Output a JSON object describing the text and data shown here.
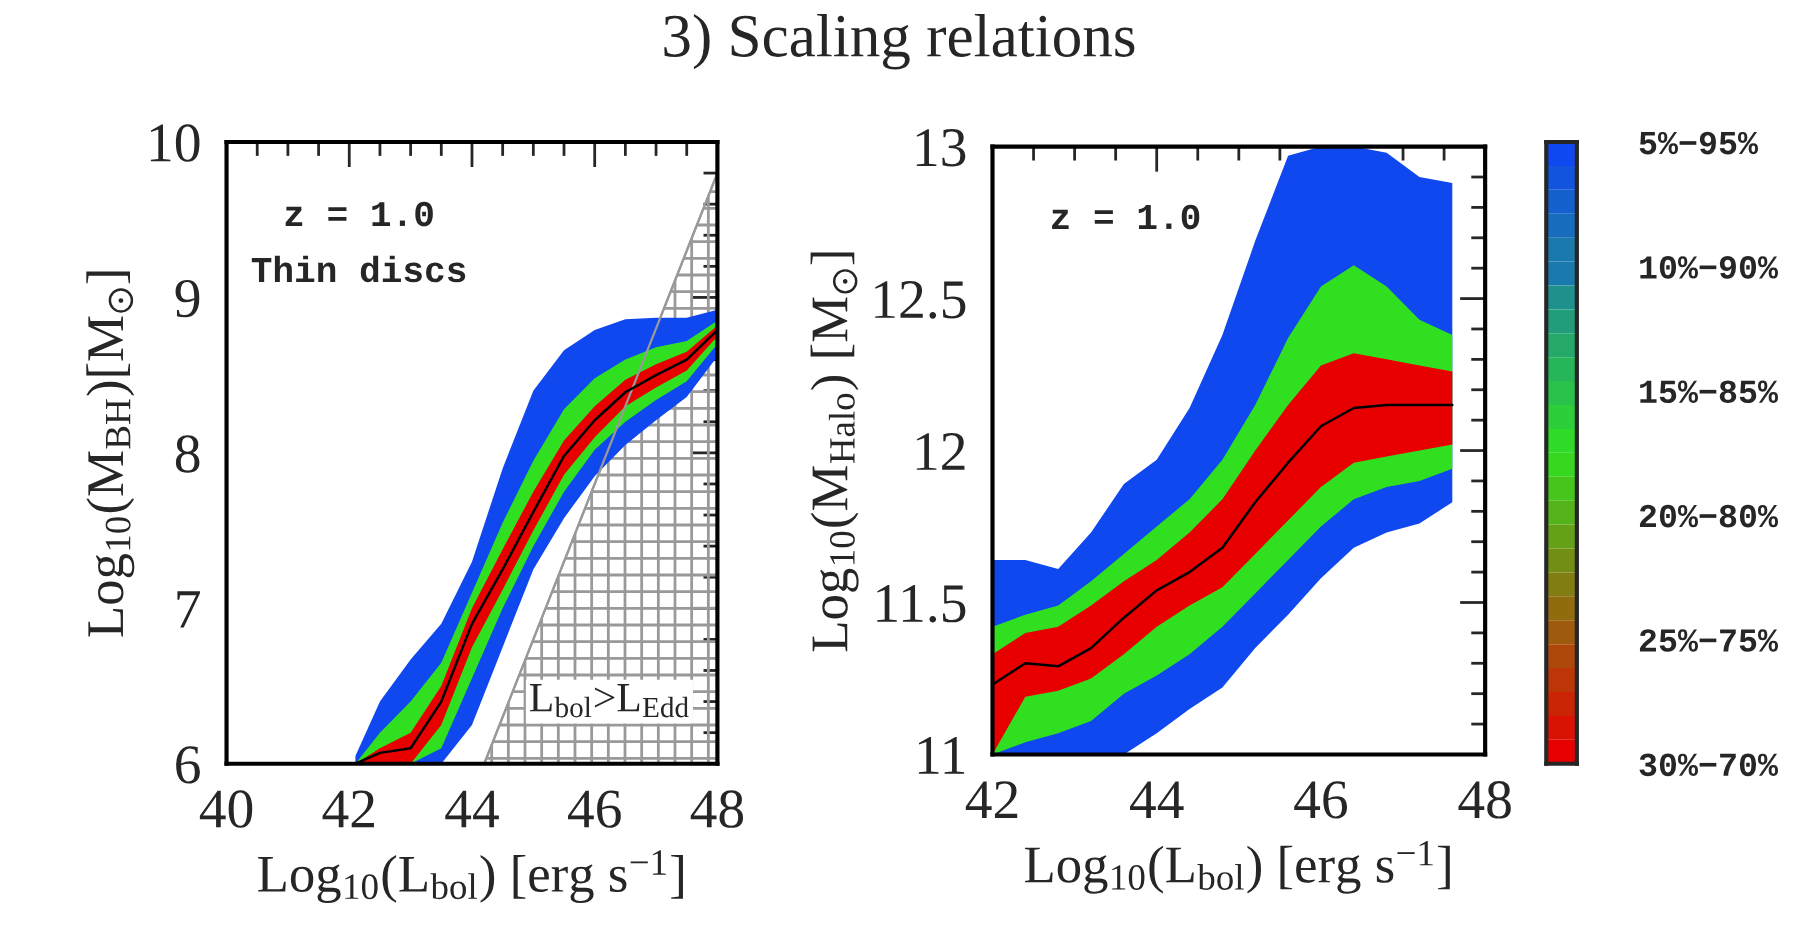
{
  "chart_data": [
    {
      "type": "line",
      "title": "3) Scaling relations",
      "xlabel": "Log$_{10}$(L$_{bol}$) [erg s$^{−1}$]",
      "ylabel": "Log$_{10}$(M$_{BH}$)[M$_{⊙}$]",
      "xlim": [
        40,
        48
      ],
      "ylim": [
        6,
        10
      ],
      "xticks": [
        40,
        42,
        44,
        46,
        48
      ],
      "yticks": [
        6,
        7,
        8,
        9,
        10
      ],
      "annotations": [
        "z = 1.0",
        "Thin discs",
        "L$_{bol}$>L$_{Edd}$"
      ],
      "series": [
        {
          "type": "area",
          "color": "#999999",
          "x": [
            44.2,
            48
          ],
          "values": [
            6,
            9.8
          ]
        },
        {
          "color": "#1048f0",
          "x": [
            42.1,
            42.5,
            43,
            43.5,
            44,
            44.5,
            45,
            45.5,
            46,
            46.5,
            47,
            47.5,
            48
          ],
          "values": [
            null,
            null,
            null,
            null,
            null,
            null,
            null,
            null,
            null,
            null,
            null,
            null,
            null
          ],
          "lower": [
            6,
            6,
            6,
            6,
            6.25,
            6.75,
            7.25,
            7.58,
            7.85,
            8.05,
            8.21,
            8.36,
            8.62
          ],
          "upper": [
            6.05,
            6.4,
            6.67,
            6.9,
            7.3,
            7.9,
            8.4,
            8.66,
            8.79,
            8.86,
            8.87,
            8.87,
            8.92
          ]
        },
        {
          "color": "#30e020",
          "x": [
            42.1,
            42.5,
            43,
            43.5,
            44,
            44.5,
            45,
            45.5,
            46,
            46.5,
            47,
            47.5,
            48
          ],
          "values": [
            null,
            null,
            null,
            null,
            null,
            null,
            null,
            null,
            null,
            null,
            null,
            null,
            null
          ],
          "lower": [
            6,
            6,
            6,
            6.1,
            6.55,
            7.0,
            7.4,
            7.75,
            8.02,
            8.2,
            8.34,
            8.46,
            8.7
          ],
          "upper": [
            6.0,
            6.2,
            6.4,
            6.65,
            7.1,
            7.55,
            7.95,
            8.28,
            8.48,
            8.6,
            8.68,
            8.72,
            8.85
          ]
        },
        {
          "color": "#e80000",
          "x": [
            42.1,
            42.5,
            43,
            43.5,
            44,
            44.5,
            45,
            45.5,
            46,
            46.5,
            47,
            47.5,
            48
          ],
          "values": [
            null,
            null,
            null,
            null,
            null,
            null,
            null,
            null,
            null,
            null,
            null,
            null,
            null
          ],
          "lower": [
            6,
            6,
            6,
            6.25,
            6.75,
            7.12,
            7.5,
            7.86,
            8.1,
            8.3,
            8.42,
            8.53,
            8.75
          ],
          "upper": [
            6,
            6.1,
            6.2,
            6.5,
            7.0,
            7.38,
            7.75,
            8.08,
            8.3,
            8.47,
            8.57,
            8.65,
            8.82
          ]
        },
        {
          "color": "#000000",
          "x": [
            42.1,
            42.5,
            43,
            43.5,
            44,
            44.5,
            45,
            45.5,
            46,
            46.5,
            47,
            47.5,
            48
          ],
          "values": [
            6.0,
            6.07,
            6.1,
            6.4,
            6.9,
            7.25,
            7.62,
            7.98,
            8.21,
            8.39,
            8.5,
            8.6,
            8.79
          ]
        }
      ]
    },
    {
      "type": "line",
      "xlabel": "Log$_{10}$(L$_{bol}$) [erg s$^{−1}$]",
      "ylabel": "Log$_{10}$(M$_{Halo}$) [M$_{⊙}$]",
      "xlim": [
        42,
        48
      ],
      "ylim": [
        11,
        13
      ],
      "xticks": [
        42,
        44,
        46,
        48
      ],
      "yticks": [
        11,
        11.5,
        12,
        12.5,
        13
      ],
      "annotations": [
        "z = 1.0"
      ],
      "clim": [
        30,
        5
      ],
      "cticks": [
        {
          "value": 5,
          "label": "5%−95%"
        },
        {
          "value": 10,
          "label": "10%−90%"
        },
        {
          "value": 15,
          "label": "15%−85%"
        },
        {
          "value": 20,
          "label": "20%−80%"
        },
        {
          "value": 25,
          "label": "25%−75%"
        },
        {
          "value": 30,
          "label": "30%−70%"
        }
      ],
      "series": [
        {
          "color": "#1048f0",
          "x": [
            42,
            42.4,
            42.8,
            43.2,
            43.6,
            44,
            44.4,
            44.8,
            45.2,
            45.6,
            46,
            46.4,
            46.8,
            47.2,
            47.6
          ],
          "values": [
            null,
            null,
            null,
            null,
            null,
            null,
            null,
            null,
            null,
            null,
            null,
            null,
            null,
            null,
            null
          ],
          "lower": [
            11,
            11,
            11,
            11,
            11,
            11.07,
            11.15,
            11.22,
            11.35,
            11.46,
            11.58,
            11.68,
            11.73,
            11.76,
            11.83
          ],
          "upper": [
            11.64,
            11.64,
            11.61,
            11.73,
            11.89,
            11.97,
            12.14,
            12.38,
            12.69,
            12.97,
            13,
            13,
            12.98,
            12.9,
            12.88
          ]
        },
        {
          "color": "#30e020",
          "x": [
            42,
            42.4,
            42.8,
            43.2,
            43.6,
            44,
            44.4,
            44.8,
            45.2,
            45.6,
            46,
            46.4,
            46.8,
            47.2,
            47.6
          ],
          "values": [
            null,
            null,
            null,
            null,
            null,
            null,
            null,
            null,
            null,
            null,
            null,
            null,
            null,
            null,
            null
          ],
          "lower": [
            11,
            11.04,
            11.07,
            11.11,
            11.2,
            11.26,
            11.33,
            11.42,
            11.53,
            11.64,
            11.75,
            11.84,
            11.88,
            11.9,
            11.94
          ],
          "upper": [
            11.42,
            11.46,
            11.49,
            11.57,
            11.66,
            11.75,
            11.84,
            11.97,
            12.15,
            12.37,
            12.54,
            12.61,
            12.54,
            12.43,
            12.38
          ]
        },
        {
          "color": "#e80000",
          "x": [
            42,
            42.4,
            42.8,
            43.2,
            43.6,
            44,
            44.4,
            44.8,
            45.2,
            45.6,
            46,
            46.4,
            46.8,
            47.2,
            47.6
          ],
          "values": [
            null,
            null,
            null,
            null,
            null,
            null,
            null,
            null,
            null,
            null,
            null,
            null,
            null,
            null,
            null
          ],
          "lower": [
            11,
            11.19,
            11.21,
            11.25,
            11.33,
            11.42,
            11.49,
            11.55,
            11.66,
            11.77,
            11.88,
            11.96,
            11.98,
            12.0,
            12.02
          ],
          "upper": [
            11.33,
            11.4,
            11.42,
            11.49,
            11.57,
            11.64,
            11.73,
            11.84,
            12.0,
            12.15,
            12.28,
            12.32,
            12.3,
            12.28,
            12.26
          ]
        },
        {
          "color": "#000000",
          "x": [
            42,
            42.4,
            42.8,
            43.2,
            43.6,
            44,
            44.4,
            44.8,
            45.2,
            45.6,
            46,
            46.4,
            46.8,
            47.2,
            47.6
          ],
          "values": [
            11.23,
            11.3,
            11.29,
            11.35,
            11.45,
            11.54,
            11.6,
            11.68,
            11.83,
            11.96,
            12.08,
            12.14,
            12.15,
            12.15,
            12.15
          ]
        }
      ]
    }
  ]
}
